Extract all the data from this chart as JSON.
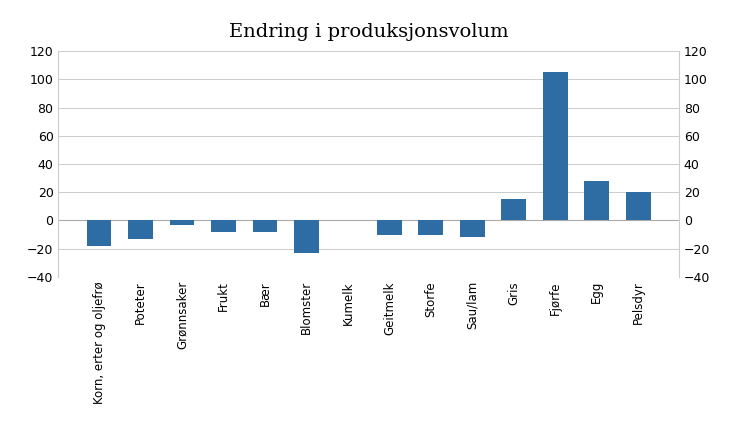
{
  "categories": [
    "Korn, erter og oljefrø",
    "Poteter",
    "Grønnsaker",
    "Frukt",
    "Bær",
    "Blomster",
    "Kumelk",
    "Geitmelk",
    "Storfe",
    "Sau/lam",
    "Gris",
    "Fjørfe",
    "Egg",
    "Pelsdyr"
  ],
  "values": [
    -18,
    -13,
    -3,
    -8,
    -8,
    -23,
    0,
    -10,
    -10,
    -12,
    15,
    105,
    28,
    20
  ],
  "bar_color": "#2e6da4",
  "title": "Endring i produksjonsvolum",
  "ylim": [
    -40,
    120
  ],
  "yticks": [
    -40,
    -20,
    0,
    20,
    40,
    60,
    80,
    100,
    120
  ],
  "background_color": "#ffffff",
  "title_fontsize": 14,
  "tick_fontsize": 9,
  "xlabel_fontsize": 8.5
}
